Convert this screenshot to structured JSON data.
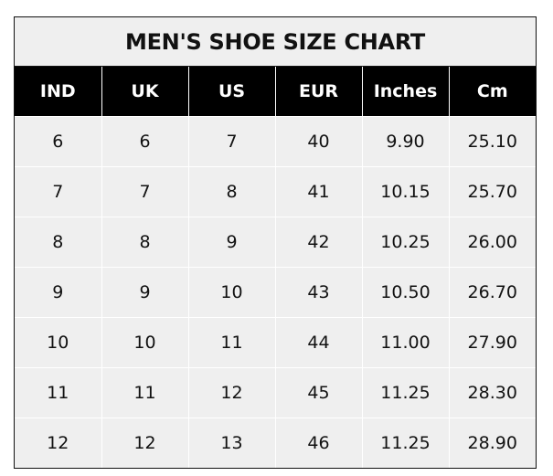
{
  "title": "MEN'S SHOE SIZE CHART",
  "columns": [
    "IND",
    "UK",
    "US",
    "EUR",
    "Inches",
    "Cm"
  ],
  "rows": [
    [
      "6",
      "6",
      "7",
      "40",
      "9.90",
      "25.10"
    ],
    [
      "7",
      "7",
      "8",
      "41",
      "10.15",
      "25.70"
    ],
    [
      "8",
      "8",
      "9",
      "42",
      "10.25",
      "26.00"
    ],
    [
      "9",
      "9",
      "10",
      "43",
      "10.50",
      "26.70"
    ],
    [
      "10",
      "10",
      "11",
      "44",
      "11.00",
      "27.90"
    ],
    [
      "11",
      "11",
      "12",
      "45",
      "11.25",
      "28.30"
    ],
    [
      "12",
      "12",
      "13",
      "46",
      "11.25",
      "28.90"
    ]
  ],
  "colors": {
    "header_bg": "#000000",
    "header_text": "#ffffff",
    "cell_bg": "#efefef",
    "text": "#111111"
  }
}
